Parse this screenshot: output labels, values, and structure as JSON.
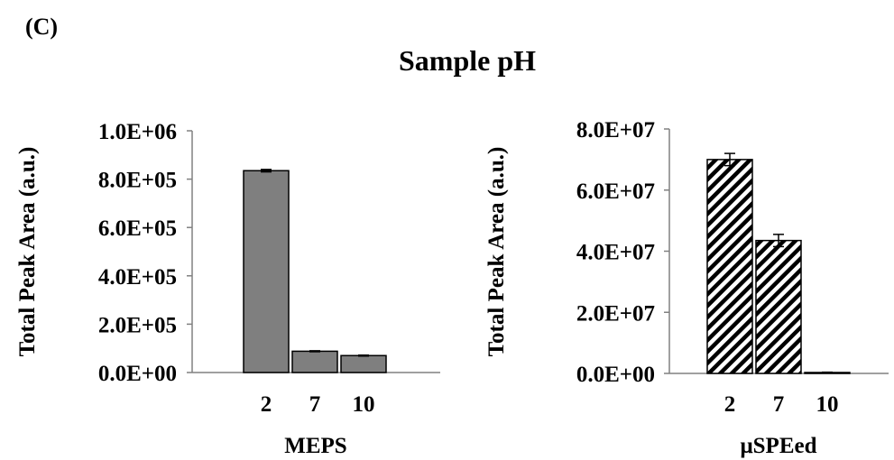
{
  "panel_label": "(C)",
  "title": "Sample pH",
  "chart_data": [
    {
      "type": "bar",
      "xlabel": "MEPS",
      "ylabel": "Total Peak Area (a.u.)",
      "categories": [
        "2",
        "7",
        "10"
      ],
      "values": [
        835000,
        88000,
        70000
      ],
      "errors": [
        5000,
        2000,
        2000
      ],
      "ylim": [
        0,
        1000000
      ],
      "yticks": [
        0,
        200000,
        400000,
        600000,
        800000,
        1000000
      ],
      "ytick_labels": [
        "0.0E+00",
        "2.0E+05",
        "4.0E+05",
        "6.0E+05",
        "8.0E+05",
        "1.0E+06"
      ],
      "grid": false,
      "fill": "solid",
      "bar_color": "#7f7f7f"
    },
    {
      "type": "bar",
      "xlabel": "μSPEed",
      "ylabel": "Total Peak Area (a.u.)",
      "categories": [
        "2",
        "7",
        "10"
      ],
      "values": [
        70000000,
        43500000,
        300000
      ],
      "errors": [
        2000000,
        2000000,
        100000
      ],
      "ylim": [
        0,
        80000000
      ],
      "yticks": [
        0,
        20000000,
        40000000,
        60000000,
        80000000
      ],
      "ytick_labels": [
        "0.0E+00",
        "2.0E+07",
        "4.0E+07",
        "6.0E+07",
        "8.0E+07"
      ],
      "grid": false,
      "fill": "diagonal-hatch",
      "bar_color": "#000000"
    }
  ]
}
